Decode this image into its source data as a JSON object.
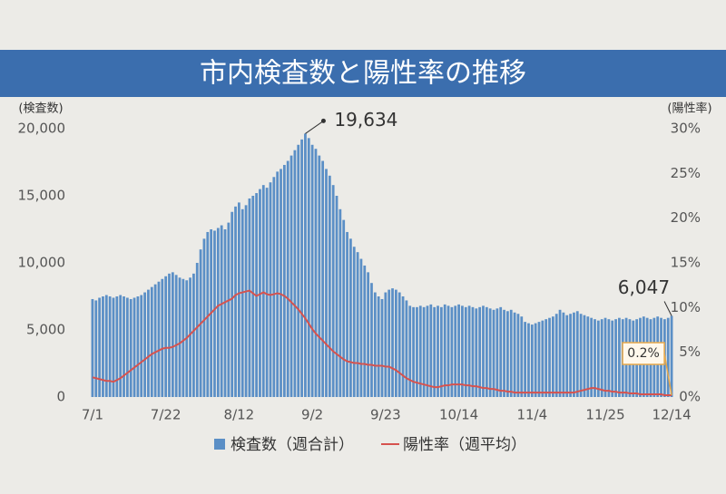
{
  "chart_data": {
    "type": "bar_line",
    "title": "市内検査数と陽性率の推移",
    "y_label": "(検査数)",
    "y2_label": "(陽性率)",
    "legend": "bottom",
    "categories": [
      "7/1",
      null,
      null,
      null,
      null,
      null,
      null,
      null,
      null,
      null,
      null,
      null,
      null,
      null,
      null,
      null,
      null,
      null,
      null,
      null,
      null,
      "7/22",
      null,
      null,
      null,
      null,
      null,
      null,
      null,
      null,
      null,
      null,
      null,
      null,
      null,
      null,
      null,
      null,
      null,
      null,
      null,
      null,
      "8/12",
      null,
      null,
      null,
      null,
      null,
      null,
      null,
      null,
      null,
      null,
      null,
      null,
      null,
      null,
      null,
      null,
      null,
      null,
      null,
      null,
      "9/2",
      null,
      null,
      null,
      null,
      null,
      null,
      null,
      null,
      null,
      null,
      null,
      null,
      null,
      null,
      null,
      null,
      null,
      null,
      null,
      null,
      "9/23",
      null,
      null,
      null,
      null,
      null,
      null,
      null,
      null,
      null,
      null,
      null,
      null,
      null,
      null,
      null,
      null,
      null,
      null,
      null,
      null,
      "10/14",
      null,
      null,
      null,
      null,
      null,
      null,
      null,
      null,
      null,
      null,
      null,
      null,
      null,
      null,
      null,
      null,
      null,
      null,
      null,
      null,
      "11/4",
      null,
      null,
      null,
      null,
      null,
      null,
      null,
      null,
      null,
      null,
      null,
      null,
      null,
      null,
      null,
      null,
      null,
      null,
      null,
      null,
      "11/25",
      null,
      null,
      null,
      null,
      null,
      null,
      null,
      null,
      null,
      null,
      null,
      null,
      null,
      null,
      null,
      null,
      null,
      null,
      "12/14"
    ],
    "series": [
      {
        "name": "検査数（週合計）",
        "type": "bar",
        "color": "#5b8fc6",
        "values": [
          7300,
          7200,
          7400,
          7500,
          7600,
          7500,
          7400,
          7500,
          7600,
          7500,
          7400,
          7300,
          7400,
          7500,
          7600,
          7800,
          8000,
          8200,
          8400,
          8600,
          8800,
          9000,
          9200,
          9300,
          9100,
          8900,
          8800,
          8700,
          8900,
          9200,
          10000,
          11000,
          11800,
          12300,
          12500,
          12400,
          12600,
          12800,
          12500,
          13000,
          13800,
          14200,
          14500,
          14000,
          14300,
          14800,
          15000,
          15200,
          15500,
          15800,
          15600,
          16000,
          16400,
          16800,
          17000,
          17300,
          17600,
          18000,
          18400,
          18800,
          19200,
          19634,
          19300,
          18800,
          18500,
          18000,
          17600,
          17000,
          16500,
          15800,
          15000,
          14000,
          13200,
          12300,
          11800,
          11200,
          10800,
          10300,
          9800,
          9300,
          8500,
          7800,
          7500,
          7300,
          7800,
          8000,
          8100,
          8000,
          7800,
          7500,
          7200,
          6800,
          6700,
          6700,
          6800,
          6700,
          6800,
          6900,
          6700,
          6800,
          6700,
          6900,
          6800,
          6700,
          6800,
          6900,
          6800,
          6700,
          6800,
          6700,
          6600,
          6700,
          6800,
          6700,
          6600,
          6500,
          6600,
          6700,
          6500,
          6400,
          6500,
          6300,
          6200,
          6000,
          5600,
          5500,
          5400,
          5500,
          5600,
          5700,
          5800,
          5900,
          6000,
          6200,
          6500,
          6300,
          6100,
          6200,
          6300,
          6400,
          6200,
          6100,
          6000,
          5900,
          5800,
          5700,
          5800,
          5900,
          5800,
          5700,
          5800,
          5900,
          5800,
          5900,
          5800,
          5700,
          5800,
          5900,
          6000,
          5900,
          5800,
          5900,
          6000,
          5900,
          5800,
          5900,
          6047
        ],
        "value_labels": {
          "61": "19,634",
          "166": "6,047"
        }
      },
      {
        "name": "陽性率（週平均）",
        "type": "line",
        "axis": "y2",
        "color": "#d6524e",
        "values": [
          2.2,
          2.1,
          2.0,
          1.9,
          1.8,
          1.8,
          1.7,
          1.9,
          2.1,
          2.4,
          2.7,
          3.0,
          3.3,
          3.6,
          3.9,
          4.2,
          4.5,
          4.8,
          5.0,
          5.2,
          5.4,
          5.5,
          5.5,
          5.6,
          5.8,
          6.0,
          6.3,
          6.6,
          7.0,
          7.4,
          7.8,
          8.2,
          8.6,
          9.0,
          9.4,
          9.8,
          10.2,
          10.4,
          10.6,
          10.8,
          11.0,
          11.4,
          11.6,
          11.7,
          11.8,
          11.9,
          11.6,
          11.3,
          11.5,
          11.7,
          11.5,
          11.4,
          11.5,
          11.6,
          11.5,
          11.3,
          11.0,
          10.6,
          10.2,
          9.8,
          9.3,
          8.8,
          8.2,
          7.6,
          7.1,
          6.7,
          6.3,
          5.9,
          5.5,
          5.1,
          4.8,
          4.5,
          4.2,
          4.0,
          3.9,
          3.8,
          3.8,
          3.7,
          3.7,
          3.6,
          3.6,
          3.5,
          3.5,
          3.5,
          3.4,
          3.4,
          3.2,
          3.0,
          2.7,
          2.4,
          2.1,
          1.9,
          1.7,
          1.6,
          1.5,
          1.4,
          1.3,
          1.2,
          1.1,
          1.1,
          1.2,
          1.3,
          1.3,
          1.4,
          1.4,
          1.4,
          1.4,
          1.3,
          1.3,
          1.2,
          1.2,
          1.1,
          1.0,
          1.0,
          0.9,
          0.9,
          0.8,
          0.7,
          0.7,
          0.6,
          0.6,
          0.5,
          0.5,
          0.5,
          0.5,
          0.5,
          0.5,
          0.5,
          0.5,
          0.5,
          0.5,
          0.5,
          0.5,
          0.5,
          0.5,
          0.5,
          0.5,
          0.5,
          0.5,
          0.6,
          0.7,
          0.8,
          0.9,
          1.0,
          1.0,
          0.9,
          0.8,
          0.7,
          0.7,
          0.6,
          0.6,
          0.5,
          0.5,
          0.5,
          0.4,
          0.4,
          0.4,
          0.3,
          0.3,
          0.3,
          0.3,
          0.3,
          0.3,
          0.3,
          0.2,
          0.2,
          0.2
        ],
        "value_labels": {
          "166": "0.2%"
        }
      }
    ],
    "ylim": [
      0,
      20000
    ],
    "yticks": [
      0,
      {
        "value": 5000,
        "label": "5,000"
      },
      {
        "value": 10000,
        "label": "10,000"
      },
      {
        "value": 15000,
        "label": "15,000"
      },
      {
        "value": 20000,
        "label": "20,000"
      }
    ],
    "y2lim": [
      0,
      30
    ],
    "y2ticks": [
      {
        "value": 0,
        "label": "0%"
      },
      {
        "value": 5,
        "label": "5%"
      },
      {
        "value": 10,
        "label": "10%"
      },
      {
        "value": 15,
        "label": "15%"
      },
      {
        "value": 20,
        "label": "20%"
      },
      {
        "value": 25,
        "label": "25%"
      },
      {
        "value": 30,
        "label": "30%"
      }
    ],
    "grid": false
  }
}
